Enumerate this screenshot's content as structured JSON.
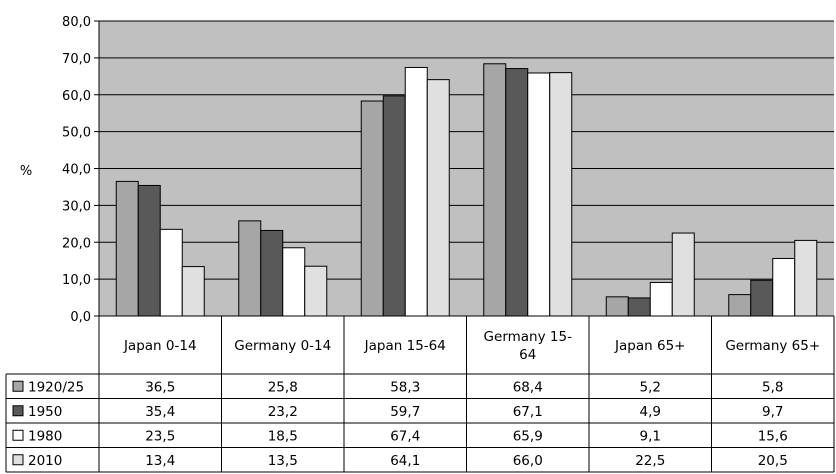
{
  "chart_data": {
    "type": "bar",
    "ylabel": "%",
    "ylim": [
      0,
      80
    ],
    "yticks": [
      "80,0",
      "70,0",
      "60,0",
      "50,0",
      "40,0",
      "30,0",
      "20,0",
      "10,0",
      "0,0"
    ],
    "categories": [
      [
        "Japan 0-14"
      ],
      [
        "Germany 0-14"
      ],
      [
        "Japan 15-64"
      ],
      [
        "Germany 15-",
        "64"
      ],
      [
        "Japan 65+"
      ],
      [
        "Germany 65+"
      ]
    ],
    "series": [
      {
        "name": "1920/25",
        "color": "#a6a6a6",
        "values": [
          36.5,
          25.8,
          58.3,
          68.4,
          5.2,
          5.8
        ],
        "labels": [
          "36,5",
          "25,8",
          "58,3",
          "68,4",
          "5,2",
          "5,8"
        ]
      },
      {
        "name": "1950",
        "color": "#595959",
        "values": [
          35.4,
          23.2,
          59.7,
          67.1,
          4.9,
          9.7
        ],
        "labels": [
          "35,4",
          "23,2",
          "59,7",
          "67,1",
          "4,9",
          "9,7"
        ]
      },
      {
        "name": "1980",
        "color": "#ffffff",
        "values": [
          23.5,
          18.5,
          67.4,
          65.9,
          9.1,
          15.6
        ],
        "labels": [
          "23,5",
          "18,5",
          "67,4",
          "65,9",
          "9,1",
          "15,6"
        ]
      },
      {
        "name": "2010",
        "color": "#e0e0e0",
        "values": [
          13.4,
          13.5,
          64.1,
          66.0,
          22.5,
          20.5
        ],
        "labels": [
          "13,4",
          "13,5",
          "64,1",
          "66,0",
          "22,5",
          "20,5"
        ]
      }
    ],
    "plot_background": "#c0c0c0",
    "grid": true,
    "legend": "data-table"
  }
}
